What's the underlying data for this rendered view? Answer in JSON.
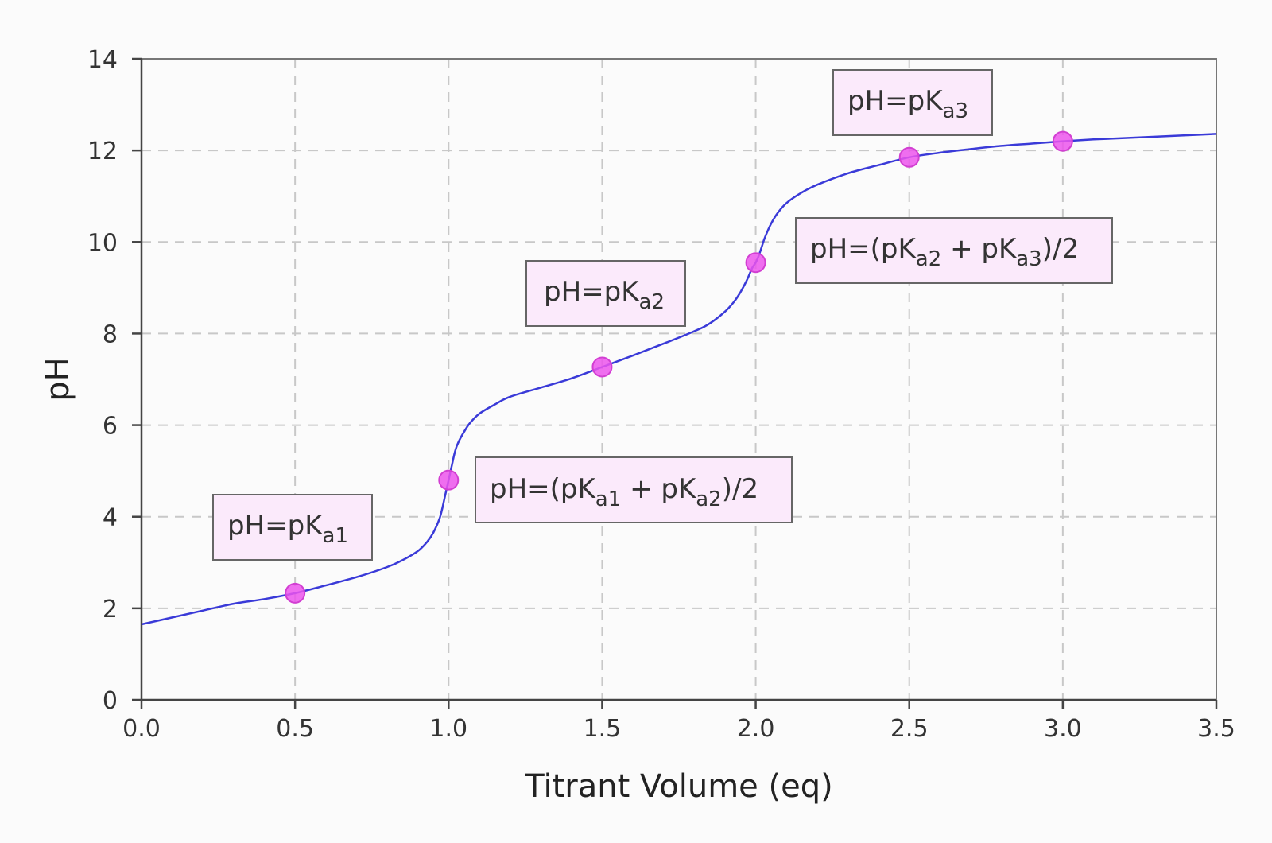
{
  "chart_data": {
    "type": "line",
    "xlabel": "Titrant Volume (eq)",
    "ylabel": "pH",
    "xlim": [
      0,
      3.5
    ],
    "ylim": [
      0,
      14
    ],
    "xticks": [
      "0.0",
      "0.5",
      "1.0",
      "1.5",
      "2.0",
      "2.5",
      "3.0",
      "3.5"
    ],
    "yticks": [
      "0",
      "2",
      "4",
      "6",
      "8",
      "10",
      "12",
      "14"
    ],
    "grid": true,
    "line_color": "#3a3ad8",
    "marker_color": "#ec55ec",
    "series": [
      {
        "x": [
          0.0,
          0.1,
          0.2,
          0.3,
          0.4,
          0.5,
          0.6,
          0.7,
          0.8,
          0.85,
          0.9,
          0.93,
          0.95,
          0.97,
          0.98,
          0.99,
          1.0,
          1.01,
          1.02,
          1.03,
          1.05,
          1.07,
          1.1,
          1.15,
          1.2,
          1.3,
          1.4,
          1.5,
          1.6,
          1.7,
          1.8,
          1.85,
          1.9,
          1.93,
          1.95,
          1.97,
          1.98,
          1.99,
          2.0,
          2.01,
          2.02,
          2.03,
          2.05,
          2.07,
          2.1,
          2.15,
          2.2,
          2.3,
          2.4,
          2.5,
          2.6,
          2.7,
          2.8,
          2.9,
          3.0,
          3.1,
          3.2,
          3.3,
          3.4,
          3.5
        ],
        "y": [
          1.65,
          1.8,
          1.95,
          2.1,
          2.2,
          2.33,
          2.5,
          2.68,
          2.9,
          3.05,
          3.25,
          3.45,
          3.65,
          3.95,
          4.2,
          4.5,
          4.8,
          5.1,
          5.4,
          5.6,
          5.85,
          6.05,
          6.25,
          6.45,
          6.62,
          6.82,
          7.02,
          7.27,
          7.52,
          7.78,
          8.05,
          8.22,
          8.48,
          8.7,
          8.9,
          9.15,
          9.3,
          9.45,
          9.55,
          9.7,
          9.9,
          10.1,
          10.4,
          10.62,
          10.85,
          11.08,
          11.25,
          11.5,
          11.68,
          11.85,
          11.95,
          12.03,
          12.1,
          12.15,
          12.2,
          12.24,
          12.27,
          12.3,
          12.33,
          12.36
        ]
      }
    ],
    "markers": [
      {
        "x": 0.5,
        "y": 2.33
      },
      {
        "x": 1.0,
        "y": 4.8
      },
      {
        "x": 1.5,
        "y": 7.27
      },
      {
        "x": 2.0,
        "y": 9.55
      },
      {
        "x": 2.5,
        "y": 11.85
      },
      {
        "x": 3.0,
        "y": 12.2
      }
    ],
    "annotations": [
      {
        "parts": [
          [
            "pH=pK",
            ""
          ],
          [
            "a1",
            "sub"
          ]
        ]
      },
      {
        "parts": [
          [
            "pH=(pK",
            ""
          ],
          [
            "a1",
            "sub"
          ],
          [
            " + pK",
            ""
          ],
          [
            "a2",
            "sub"
          ],
          [
            ")/2",
            ""
          ]
        ]
      },
      {
        "parts": [
          [
            "pH=pK",
            ""
          ],
          [
            "a2",
            "sub"
          ]
        ]
      },
      {
        "parts": [
          [
            "pH=(pK",
            ""
          ],
          [
            "a2",
            "sub"
          ],
          [
            " + pK",
            ""
          ],
          [
            "a3",
            "sub"
          ],
          [
            ")/2",
            ""
          ]
        ]
      },
      {
        "parts": [
          [
            "pH=pK",
            ""
          ],
          [
            "a3",
            "sub"
          ]
        ]
      }
    ]
  }
}
